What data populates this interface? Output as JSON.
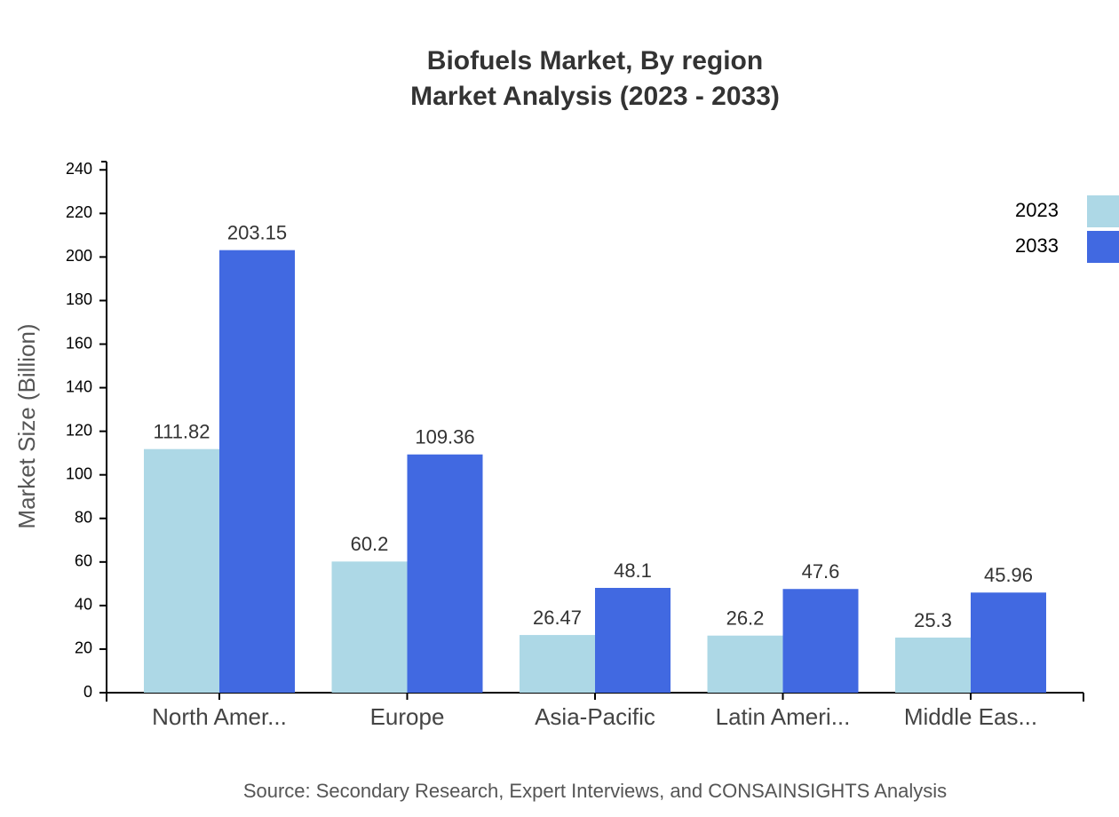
{
  "chart_data": {
    "type": "bar",
    "title": "Biofuels Market, By region",
    "subtitle": "Market Analysis (2023 - 2033)",
    "y_label": "Market Size (Billion)",
    "source": "Source: Secondary Research, Expert Interviews, and CONSAINSIGHTS Analysis",
    "categories": [
      "North Amer...",
      "Europe",
      "Asia-Pacific",
      "Latin Ameri...",
      "Middle Eas..."
    ],
    "series": [
      {
        "name": "2023",
        "color": "#add8e6",
        "values": [
          111.82,
          60.2,
          26.47,
          26.2,
          25.3
        ]
      },
      {
        "name": "2033",
        "color": "#4169e1",
        "values": [
          203.15,
          109.36,
          48.1,
          47.6,
          45.96
        ]
      }
    ],
    "ylim": [
      0,
      243.78
    ],
    "yticks": [
      0,
      20,
      40,
      60,
      80,
      100,
      120,
      140,
      160,
      180,
      200,
      220,
      240
    ],
    "legend": "top-right"
  }
}
